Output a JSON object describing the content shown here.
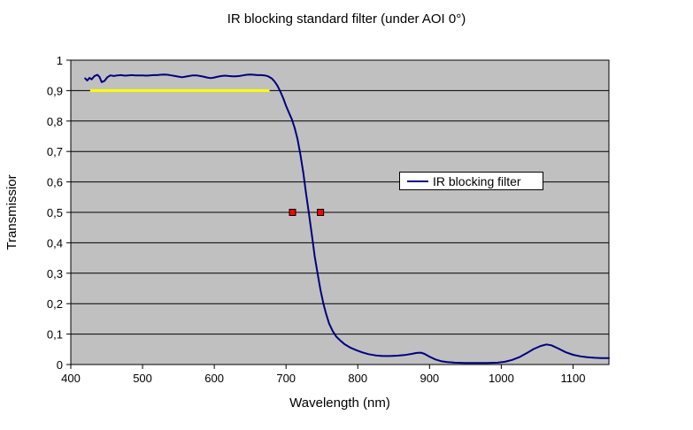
{
  "title": "IR blocking standard filter (under AOI 0°)",
  "legend": {
    "label": "IR blocking filter"
  },
  "colors": {
    "plot_background": "#C0C0C0",
    "gridline": "#000000",
    "axis": "#000000",
    "series_line": "#000080",
    "spec_line": "#FFFF00",
    "marker_fill": "#FF0000",
    "marker_border": "#000000",
    "legend_background": "#FFFFFF",
    "text": "#000000"
  },
  "chart_data": {
    "type": "line",
    "title": "IR blocking standard filter (under AOI 0°)",
    "xlabel": "Wavelength (nm)",
    "ylabel": "Transmissior",
    "xlim": [
      400,
      1150
    ],
    "ylim": [
      0,
      1
    ],
    "grid": "horizontal",
    "x_tick_values": [
      400,
      500,
      600,
      700,
      800,
      900,
      1000,
      1100
    ],
    "x_tick_labels": [
      "400",
      "500",
      "600",
      "700",
      "800",
      "900",
      "1000",
      "1100"
    ],
    "y_tick_values": [
      0,
      0.1,
      0.2,
      0.3,
      0.4,
      0.5,
      0.6,
      0.7,
      0.8,
      0.9,
      1
    ],
    "y_tick_labels": [
      "0",
      "0,1",
      "0,2",
      "0,3",
      "0,4",
      "0,5",
      "0,6",
      "0,7",
      "0,8",
      "0,9",
      "1"
    ],
    "legend": {
      "label": "IR blocking filter",
      "position": "middle-right"
    },
    "series": [
      {
        "name": "IR blocking filter",
        "color": "#000080",
        "points": [
          [
            420,
            0.94
          ],
          [
            423,
            0.933
          ],
          [
            426,
            0.942
          ],
          [
            429,
            0.937
          ],
          [
            433,
            0.948
          ],
          [
            437,
            0.952
          ],
          [
            440,
            0.945
          ],
          [
            443,
            0.928
          ],
          [
            447,
            0.932
          ],
          [
            451,
            0.944
          ],
          [
            455,
            0.95
          ],
          [
            460,
            0.948
          ],
          [
            465,
            0.95
          ],
          [
            470,
            0.951
          ],
          [
            475,
            0.949
          ],
          [
            480,
            0.95
          ],
          [
            485,
            0.951
          ],
          [
            490,
            0.95
          ],
          [
            495,
            0.95
          ],
          [
            500,
            0.95
          ],
          [
            505,
            0.949
          ],
          [
            510,
            0.95
          ],
          [
            515,
            0.951
          ],
          [
            520,
            0.951
          ],
          [
            525,
            0.952
          ],
          [
            530,
            0.953
          ],
          [
            535,
            0.952
          ],
          [
            540,
            0.95
          ],
          [
            545,
            0.948
          ],
          [
            550,
            0.946
          ],
          [
            555,
            0.944
          ],
          [
            560,
            0.946
          ],
          [
            565,
            0.948
          ],
          [
            570,
            0.95
          ],
          [
            575,
            0.95
          ],
          [
            580,
            0.948
          ],
          [
            585,
            0.946
          ],
          [
            590,
            0.943
          ],
          [
            595,
            0.941
          ],
          [
            600,
            0.943
          ],
          [
            605,
            0.946
          ],
          [
            610,
            0.948
          ],
          [
            615,
            0.949
          ],
          [
            620,
            0.948
          ],
          [
            625,
            0.947
          ],
          [
            630,
            0.947
          ],
          [
            635,
            0.948
          ],
          [
            640,
            0.95
          ],
          [
            645,
            0.952
          ],
          [
            650,
            0.953
          ],
          [
            655,
            0.952
          ],
          [
            660,
            0.951
          ],
          [
            665,
            0.951
          ],
          [
            670,
            0.95
          ],
          [
            675,
            0.947
          ],
          [
            680,
            0.94
          ],
          [
            684,
            0.93
          ],
          [
            688,
            0.916
          ],
          [
            692,
            0.897
          ],
          [
            696,
            0.875
          ],
          [
            700,
            0.85
          ],
          [
            704,
            0.828
          ],
          [
            708,
            0.806
          ],
          [
            712,
            0.778
          ],
          [
            716,
            0.74
          ],
          [
            720,
            0.69
          ],
          [
            724,
            0.63
          ],
          [
            728,
            0.56
          ],
          [
            732,
            0.495
          ],
          [
            736,
            0.425
          ],
          [
            740,
            0.355
          ],
          [
            744,
            0.298
          ],
          [
            748,
            0.245
          ],
          [
            752,
            0.2
          ],
          [
            756,
            0.165
          ],
          [
            760,
            0.135
          ],
          [
            765,
            0.11
          ],
          [
            770,
            0.092
          ],
          [
            776,
            0.078
          ],
          [
            782,
            0.066
          ],
          [
            790,
            0.055
          ],
          [
            798,
            0.047
          ],
          [
            806,
            0.04
          ],
          [
            815,
            0.034
          ],
          [
            825,
            0.03
          ],
          [
            835,
            0.028
          ],
          [
            845,
            0.028
          ],
          [
            855,
            0.029
          ],
          [
            865,
            0.031
          ],
          [
            875,
            0.035
          ],
          [
            882,
            0.038
          ],
          [
            888,
            0.039
          ],
          [
            893,
            0.035
          ],
          [
            900,
            0.026
          ],
          [
            908,
            0.017
          ],
          [
            916,
            0.011
          ],
          [
            925,
            0.008
          ],
          [
            935,
            0.006
          ],
          [
            950,
            0.005
          ],
          [
            965,
            0.005
          ],
          [
            980,
            0.005
          ],
          [
            995,
            0.006
          ],
          [
            1005,
            0.009
          ],
          [
            1015,
            0.015
          ],
          [
            1025,
            0.024
          ],
          [
            1035,
            0.037
          ],
          [
            1045,
            0.051
          ],
          [
            1055,
            0.061
          ],
          [
            1063,
            0.066
          ],
          [
            1070,
            0.063
          ],
          [
            1080,
            0.052
          ],
          [
            1090,
            0.04
          ],
          [
            1100,
            0.032
          ],
          [
            1110,
            0.027
          ],
          [
            1120,
            0.024
          ],
          [
            1130,
            0.022
          ],
          [
            1140,
            0.021
          ],
          [
            1150,
            0.021
          ]
        ]
      }
    ],
    "annotations": {
      "spec_line": {
        "y": 0.9,
        "x1": 427,
        "x2": 677,
        "color": "#FFFF00"
      },
      "markers": {
        "color": "#FF0000",
        "border": "#000000",
        "points": [
          [
            709,
            0.5
          ],
          [
            748,
            0.5
          ]
        ]
      }
    }
  }
}
